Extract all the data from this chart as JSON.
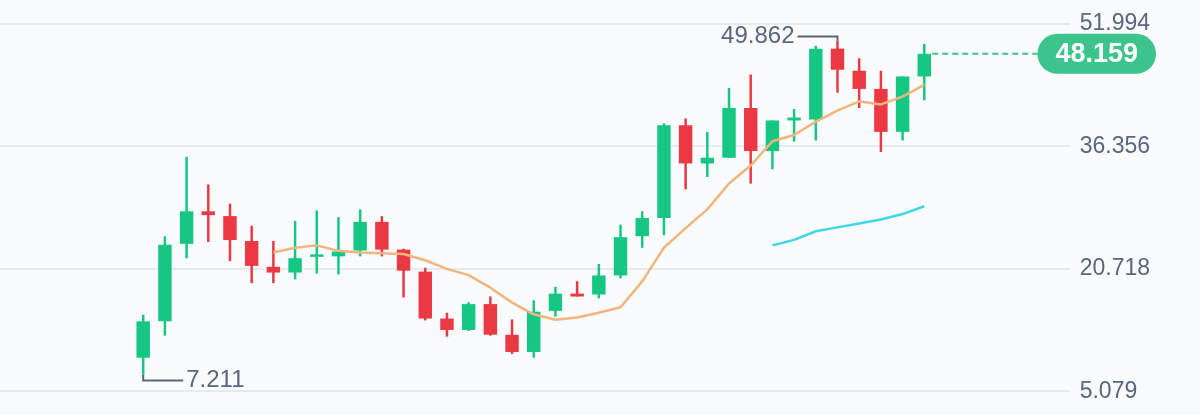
{
  "chart_data": {
    "type": "candlestick",
    "categories": [
      null,
      null,
      null,
      null,
      null,
      null,
      null,
      null,
      null,
      null,
      null,
      null,
      null,
      null,
      null,
      null,
      null,
      null,
      null,
      null,
      null,
      null,
      null,
      null,
      null,
      null,
      null,
      null,
      null,
      null,
      null,
      null,
      null,
      null,
      null,
      null,
      null
    ],
    "ohlc": [
      [
        9.35,
        14.85,
        7.211,
        14.0
      ],
      [
        14.0,
        24.87,
        12.17,
        23.77
      ],
      [
        23.89,
        35.01,
        22.06,
        28.05
      ],
      [
        28.05,
        31.47,
        24.14,
        27.56
      ],
      [
        27.44,
        29.02,
        21.69,
        24.38
      ],
      [
        24.26,
        26.21,
        18.88,
        21.08
      ],
      [
        20.96,
        24.26,
        18.88,
        20.23
      ],
      [
        20.23,
        26.82,
        19.37,
        22.06
      ],
      [
        22.3,
        28.17,
        20.11,
        22.55
      ],
      [
        22.3,
        27.31,
        19.98,
        22.92
      ],
      [
        23.04,
        28.29,
        22.3,
        26.7
      ],
      [
        26.7,
        27.44,
        22.3,
        23.16
      ],
      [
        23.16,
        23.28,
        17.05,
        20.47
      ],
      [
        20.35,
        20.84,
        14.12,
        14.36
      ],
      [
        14.36,
        15.1,
        12.04,
        12.9
      ],
      [
        12.9,
        16.44,
        12.78,
        16.2
      ],
      [
        16.2,
        17.17,
        12.17,
        12.29
      ],
      [
        12.29,
        14.24,
        9.84,
        10.09
      ],
      [
        10.09,
        16.69,
        9.35,
        15.22
      ],
      [
        15.34,
        18.4,
        14.61,
        17.54
      ],
      [
        17.54,
        19.13,
        17.17,
        17.17
      ],
      [
        17.42,
        21.33,
        16.93,
        19.86
      ],
      [
        19.86,
        26.34,
        19.5,
        24.75
      ],
      [
        24.87,
        28.05,
        23.4,
        27.19
      ],
      [
        27.19,
        39.29,
        24.99,
        39.04
      ],
      [
        39.04,
        39.9,
        30.86,
        34.16
      ],
      [
        34.16,
        38.19,
        32.44,
        34.89
      ],
      [
        34.89,
        43.81,
        34.89,
        41.24
      ],
      [
        41.24,
        45.52,
        31.59,
        35.74
      ],
      [
        35.74,
        39.65,
        33.42,
        39.65
      ],
      [
        39.65,
        41.12,
        36.96,
        40.02
      ],
      [
        39.77,
        49.18,
        37.09,
        48.82
      ],
      [
        48.82,
        49.862,
        43.2,
        46.13
      ],
      [
        46.0,
        47.59,
        41.24,
        43.68
      ],
      [
        43.68,
        46.0,
        35.62,
        38.19
      ],
      [
        38.19,
        45.27,
        37.09,
        45.27
      ],
      [
        45.27,
        49.43,
        42.22,
        48.159
      ]
    ],
    "colors": [
      "#16c784",
      "#16c784",
      "#16c784",
      "#ea3943",
      "#ea3943",
      "#ea3943",
      "#ea3943",
      "#16c784",
      "#16c784",
      "#16c784",
      "#16c784",
      "#ea3943",
      "#ea3943",
      "#ea3943",
      "#ea3943",
      "#16c784",
      "#ea3943",
      "#ea3943",
      "#16c784",
      "#16c784",
      "#ea3943",
      "#16c784",
      "#16c784",
      "#16c784",
      "#16c784",
      "#ea3943",
      "#16c784",
      "#16c784",
      "#ea3943",
      "#16c784",
      "#16c784",
      "#16c784",
      "#ea3943",
      "#ea3943",
      "#ea3943",
      "#16c784",
      "#16c784"
    ],
    "series": [
      {
        "type": "line",
        "color": "#f3b57e",
        "values": [
          null,
          null,
          null,
          null,
          null,
          null,
          22.8,
          23.4,
          23.7,
          23.0,
          22.8,
          22.7,
          22.6,
          21.8,
          20.7,
          19.9,
          18.3,
          16.4,
          14.9,
          14.2,
          14.5,
          15.1,
          15.8,
          19.1,
          23.4,
          25.9,
          28.3,
          31.6,
          33.9,
          37.0,
          37.8,
          39.5,
          40.9,
          42.1,
          41.7,
          42.7,
          44.2
        ]
      },
      {
        "type": "line",
        "color": "#3fd6e8",
        "values": [
          null,
          null,
          null,
          null,
          null,
          null,
          null,
          null,
          null,
          null,
          null,
          null,
          null,
          null,
          null,
          null,
          null,
          null,
          null,
          null,
          null,
          null,
          null,
          null,
          null,
          null,
          null,
          null,
          null,
          23.7,
          24.4,
          25.5,
          26.0,
          26.5,
          27.0,
          27.7,
          28.7
        ]
      }
    ],
    "ylim": [
      5.079,
      51.994
    ],
    "yticks": [
      5.079,
      20.718,
      36.356,
      51.994
    ],
    "grid": "y",
    "legend": false,
    "tick_labels": "y",
    "ref_lines": [
      {
        "axis": "y",
        "value": 48.159,
        "label": "48.159",
        "color": "#3cc48c",
        "line_style": "dashed"
      }
    ],
    "annotations": [
      "7.211",
      "49.862"
    ]
  }
}
